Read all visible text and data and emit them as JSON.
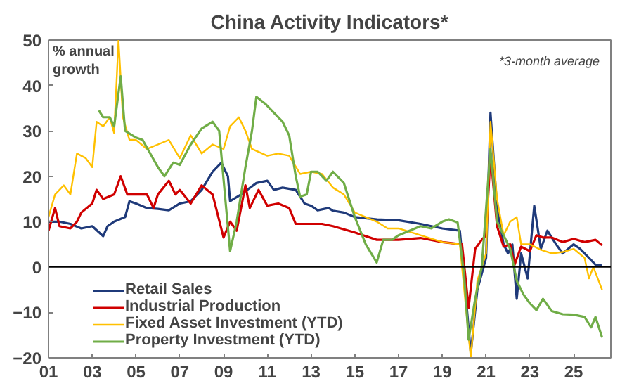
{
  "chart_data": {
    "type": "line",
    "title": "China Activity Indicators*",
    "ylabel": "% annual growth",
    "annotations": [
      "*3-month average"
    ],
    "xlim": [
      2001,
      2026.7
    ],
    "ylim": [
      -20,
      50
    ],
    "xticks": [
      {
        "value": 2001,
        "label": "01"
      },
      {
        "value": 2003,
        "label": "03"
      },
      {
        "value": 2005,
        "label": "05"
      },
      {
        "value": 2007,
        "label": "07"
      },
      {
        "value": 2009,
        "label": "09"
      },
      {
        "value": 2011,
        "label": "11"
      },
      {
        "value": 2013,
        "label": "13"
      },
      {
        "value": 2015,
        "label": "15"
      },
      {
        "value": 2017,
        "label": "17"
      },
      {
        "value": 2019,
        "label": "19"
      },
      {
        "value": 2021,
        "label": "21"
      },
      {
        "value": 2023,
        "label": "23"
      },
      {
        "value": 2025,
        "label": "25"
      }
    ],
    "yticks": [
      -20,
      -10,
      0,
      10,
      20,
      30,
      40,
      50
    ],
    "grid": false,
    "legend": "bottom left",
    "ref_lines": [
      {
        "axis": "y",
        "value": 0,
        "color": "#000000"
      }
    ],
    "series": [
      {
        "name": "Retail Sales",
        "color": "#1f3a7a",
        "x": [
          2001,
          2001.5,
          2002,
          2002.5,
          2003,
          2003.5,
          2003.7,
          2004,
          2004.5,
          2004.7,
          2005,
          2005.5,
          2006,
          2006.5,
          2007,
          2007.5,
          2008,
          2008.5,
          2008.9,
          2009.2,
          2009.3,
          2009.8,
          2010.5,
          2011,
          2011.3,
          2011.7,
          2012.3,
          2012.7,
          2013,
          2013.3,
          2013.8,
          2014,
          2014.5,
          2015,
          2016,
          2017,
          2018,
          2019,
          2019.8,
          2020.1,
          2020.3,
          2020.6,
          2021,
          2021.2,
          2021.5,
          2021.8,
          2022,
          2022.2,
          2022.4,
          2022.6,
          2022.9,
          2023.2,
          2023.5,
          2023.8,
          2024.2,
          2024.5,
          2025,
          2025.3,
          2025.7,
          2026,
          2026.3
        ],
        "values": [
          10,
          10,
          9.5,
          8.5,
          9,
          6.8,
          9,
          10,
          11,
          14.5,
          14,
          13,
          12.8,
          12.5,
          14,
          14.5,
          17,
          21,
          23,
          20,
          14.5,
          16,
          18.5,
          19,
          17,
          17.5,
          17,
          14,
          13.5,
          12.5,
          13,
          12.4,
          12,
          11,
          10.5,
          10.3,
          9.5,
          8.5,
          8,
          -8,
          -19,
          -5,
          2,
          34,
          13,
          5,
          3,
          5,
          -7,
          3,
          -2.5,
          13.5,
          4,
          8,
          5,
          3,
          5,
          4,
          2,
          0.5,
          0.3
        ]
      },
      {
        "name": "Industrial Production",
        "color": "#d00000",
        "x": [
          2001,
          2001.3,
          2001.5,
          2002,
          2002.3,
          2002.5,
          2003,
          2003.2,
          2003.5,
          2004,
          2004.3,
          2004.6,
          2005,
          2005.5,
          2005.8,
          2006,
          2006.5,
          2006.8,
          2007,
          2007.5,
          2008,
          2008.5,
          2009,
          2009.3,
          2009.6,
          2010,
          2010.2,
          2010.6,
          2011,
          2011.5,
          2012,
          2012.3,
          2013,
          2013.5,
          2014,
          2015,
          2016,
          2017,
          2018,
          2019,
          2019.9,
          2020.2,
          2020.5,
          2020.8,
          2021,
          2021.2,
          2021.5,
          2021.8,
          2022.1,
          2022.3,
          2022.6,
          2023,
          2023.3,
          2023.6,
          2024,
          2024.5,
          2025,
          2025.5,
          2026,
          2026.3
        ],
        "values": [
          8,
          13,
          9,
          8.5,
          10,
          12,
          14,
          17,
          15,
          16,
          20,
          16,
          16,
          16,
          13,
          16,
          19,
          16,
          17,
          14,
          18,
          16,
          6.5,
          10,
          8,
          18,
          13,
          17,
          13.5,
          14,
          13,
          9.5,
          9.5,
          9.5,
          9,
          7.6,
          6,
          6,
          6.4,
          5.5,
          5,
          -9,
          4,
          6,
          7,
          25,
          9,
          4.5,
          5,
          0.5,
          4.5,
          3.5,
          7,
          6.5,
          6.5,
          5.5,
          6.2,
          5.5,
          6,
          4.8
        ]
      },
      {
        "name": "Fixed Asset Investment (YTD)",
        "color": "#ffc000",
        "x": [
          2001,
          2001.3,
          2001.7,
          2002,
          2002.3,
          2002.7,
          2003,
          2003.2,
          2003.5,
          2003.8,
          2004,
          2004.2,
          2004.4,
          2004.7,
          2005,
          2005.5,
          2006,
          2006.5,
          2007,
          2007.5,
          2008,
          2008.5,
          2009,
          2009.3,
          2009.7,
          2010,
          2010.3,
          2011,
          2011.5,
          2012,
          2012.5,
          2013,
          2013.5,
          2014,
          2014.5,
          2015,
          2015.5,
          2016,
          2016.5,
          2017,
          2018,
          2019,
          2019.8,
          2020.1,
          2020.3,
          2020.6,
          2021,
          2021.2,
          2021.5,
          2021.8,
          2022.1,
          2022.4,
          2022.6,
          2023,
          2023.5,
          2024,
          2024.5,
          2025,
          2025.5,
          2025.7,
          2025.9,
          2026.3
        ],
        "values": [
          11,
          16,
          18,
          16,
          25,
          24,
          22,
          32,
          31,
          33,
          29.5,
          50,
          33,
          28,
          28,
          26,
          27,
          28,
          24,
          29,
          25,
          27,
          26,
          31,
          33,
          30,
          26,
          24.5,
          25,
          24.5,
          20.5,
          21,
          20.5,
          17.5,
          16,
          12,
          11,
          10,
          8.5,
          8.5,
          7,
          5.5,
          5,
          -10,
          -20,
          -3,
          3,
          32,
          15,
          7,
          10,
          11,
          5,
          5,
          3.8,
          3,
          3.3,
          4,
          2,
          -2.5,
          0,
          -5
        ]
      },
      {
        "name": "Property Investment (YTD)",
        "color": "#70ad47",
        "x": [
          2003.3,
          2003.5,
          2003.8,
          2004,
          2004.3,
          2004.5,
          2005,
          2005.3,
          2006,
          2006.3,
          2006.7,
          2007,
          2007.5,
          2008,
          2008.5,
          2008.8,
          2009.1,
          2009.3,
          2009.6,
          2010,
          2010.3,
          2010.5,
          2010.9,
          2011.3,
          2011.7,
          2012,
          2012.3,
          2012.5,
          2012.8,
          2013,
          2013.3,
          2013.7,
          2014,
          2014.5,
          2015,
          2015.5,
          2016,
          2016.3,
          2016.7,
          2017,
          2017.5,
          2018,
          2018.5,
          2019,
          2019.3,
          2019.7,
          2020,
          2020.2,
          2020.5,
          2020.8,
          2021.2,
          2021.5,
          2021.8,
          2022.1,
          2022.4,
          2022.7,
          2023,
          2023.3,
          2023.6,
          2024,
          2024.5,
          2025,
          2025.5,
          2025.8,
          2026,
          2026.3
        ],
        "values": [
          34.5,
          33,
          33,
          31,
          42,
          30,
          28.5,
          28,
          22,
          20,
          23,
          22.5,
          27,
          30.5,
          32,
          30,
          14,
          3.5,
          10,
          22,
          30,
          37.5,
          36,
          34,
          32,
          29,
          20,
          15.5,
          16,
          21,
          21,
          19,
          21,
          18.5,
          11,
          5,
          1,
          6,
          6,
          7,
          8,
          9,
          8.5,
          10,
          10.5,
          9.8,
          -2,
          -16,
          -7,
          0,
          26,
          10,
          7,
          4,
          -3,
          -6,
          -8,
          -9.5,
          -7,
          -9.7,
          -10.4,
          -10.5,
          -11,
          -13.3,
          -11,
          -15.5
        ]
      }
    ]
  }
}
